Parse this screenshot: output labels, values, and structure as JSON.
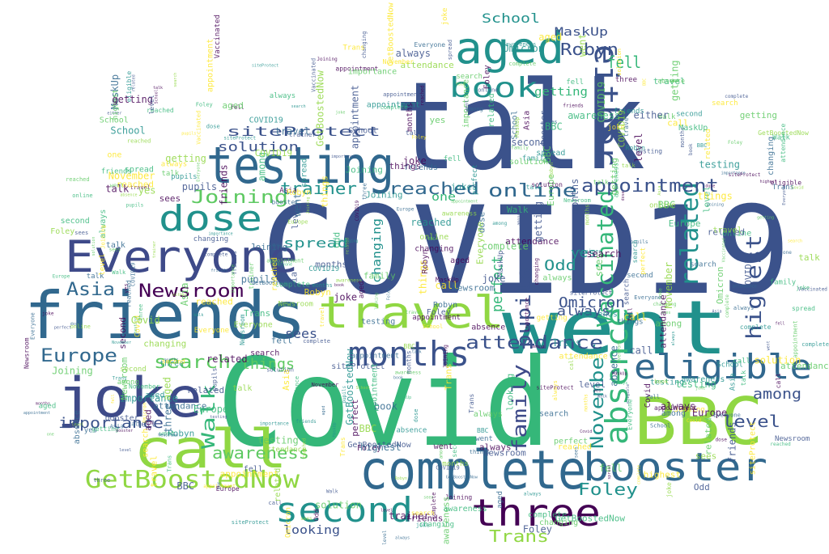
{
  "wordcloud": {
    "palette": [
      "#440154",
      "#3b528b",
      "#21918c",
      "#5ec962",
      "#fde725",
      "#31688e",
      "#35b779",
      "#90d743"
    ],
    "words": [
      {
        "text": "COVID19",
        "color": "#3b528b"
      },
      {
        "text": "talk",
        "color": "#3b528b"
      },
      {
        "text": "Covid",
        "color": "#35b779"
      },
      {
        "text": "went",
        "color": "#21918c"
      },
      {
        "text": "friends",
        "color": "#31688e"
      },
      {
        "text": "complete",
        "color": "#31688e"
      },
      {
        "text": "testing",
        "color": "#31688e"
      },
      {
        "text": "travel",
        "color": "#90d743"
      },
      {
        "text": "Everyone",
        "color": "#3e4a89"
      },
      {
        "text": "joke",
        "color": "#3e4a89"
      },
      {
        "text": "BBC",
        "color": "#90d743"
      },
      {
        "text": "aged",
        "color": "#21918c"
      },
      {
        "text": "call",
        "color": "#90d743"
      },
      {
        "text": "booster",
        "color": "#31688e"
      },
      {
        "text": "three",
        "color": "#440154"
      },
      {
        "text": "second",
        "color": "#21918c"
      },
      {
        "text": "months",
        "color": "#3b528b"
      },
      {
        "text": "eligible",
        "color": "#31688e"
      },
      {
        "text": "dose",
        "color": "#21918c"
      },
      {
        "text": "GetBoostedNow",
        "color": "#90d743"
      },
      {
        "text": "either",
        "color": "#3b528b"
      },
      {
        "text": "book",
        "color": "#21918c"
      },
      {
        "text": "absence",
        "color": "#35b779"
      },
      {
        "text": "Vaccinated",
        "color": "#35b779"
      },
      {
        "text": "related",
        "color": "#21918c"
      },
      {
        "text": "highest",
        "color": "#3b528b"
      },
      {
        "text": "pupils",
        "color": "#3b528b"
      },
      {
        "text": "November",
        "color": "#21918c"
      },
      {
        "text": "family",
        "color": "#3e4a89"
      },
      {
        "text": "attendance",
        "color": "#3b528b"
      },
      {
        "text": "appointment",
        "color": "#3b528b"
      },
      {
        "text": "online",
        "color": "#31688e"
      },
      {
        "text": "reached",
        "color": "#31688e"
      },
      {
        "text": "Joining",
        "color": "#5ec962"
      },
      {
        "text": "Newsroom",
        "color": "#440154"
      },
      {
        "text": "Asia",
        "color": "#31688e"
      },
      {
        "text": "Europe",
        "color": "#31688e"
      },
      {
        "text": "importance",
        "color": "#3b528b"
      },
      {
        "text": "search",
        "color": "#5ec962"
      },
      {
        "text": "Walk",
        "color": "#35b779"
      },
      {
        "text": "awareness",
        "color": "#5ec962"
      },
      {
        "text": "spread",
        "color": "#21918c"
      },
      {
        "text": "level",
        "color": "#3b528b"
      },
      {
        "text": "Foley",
        "color": "#21918c"
      },
      {
        "text": "Trans",
        "color": "#90d743"
      },
      {
        "text": "Robyn",
        "color": "#3b528b"
      },
      {
        "text": "trainer",
        "color": "#21918c"
      },
      {
        "text": "siteProtect",
        "color": "#3b528b"
      },
      {
        "text": "solution",
        "color": "#3b528b"
      },
      {
        "text": "School",
        "color": "#21918c"
      },
      {
        "text": "MaskUp",
        "color": "#3b528b"
      },
      {
        "text": "Odd",
        "color": "#21918c"
      },
      {
        "text": "Omicron",
        "color": "#3b528b"
      },
      {
        "text": "among",
        "color": "#3b528b"
      },
      {
        "text": "fell",
        "color": "#35b779"
      },
      {
        "text": "perfect",
        "color": "#35b779"
      },
      {
        "text": "changing",
        "color": "#21918c"
      },
      {
        "text": "looking",
        "color": "#3b528b"
      },
      {
        "text": "always",
        "color": "#3b528b"
      },
      {
        "text": "getting",
        "color": "#35b779"
      },
      {
        "text": "things",
        "color": "#5ec962"
      },
      {
        "text": "sees",
        "color": "#3b528b"
      },
      {
        "text": "yes",
        "color": "#21918c"
      },
      {
        "text": "one",
        "color": "#35b779"
      }
    ]
  }
}
